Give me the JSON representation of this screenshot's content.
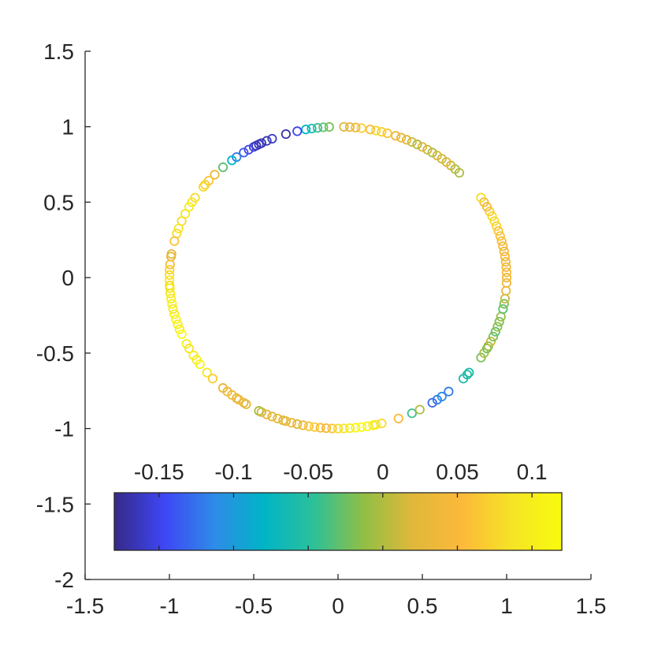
{
  "chart_data": {
    "type": "scatter",
    "marker": "open-circle",
    "colormap": "parula",
    "xlim": [
      -1.5,
      1.5
    ],
    "ylim": [
      -2,
      1.5
    ],
    "x_ticks": [
      "-1.5",
      "-1",
      "-0.5",
      "0",
      "0.5",
      "1",
      "1.5"
    ],
    "y_ticks": [
      "1.5",
      "1",
      "0.5",
      "0",
      "-0.5",
      "-1",
      "-1.5",
      "-2"
    ],
    "grid": false,
    "colorbar": {
      "location": "inside-bottom",
      "orientation": "horizontal",
      "range": [
        -0.18,
        0.12
      ],
      "ticks": [
        "-0.15",
        "-0.1",
        "-0.05",
        "0",
        "0.05",
        "0.1"
      ],
      "colors": [
        "#352a87",
        "#3e46f4",
        "#2f8ae8",
        "#00b4c6",
        "#2cc09a",
        "#8fbf45",
        "#e0b83a",
        "#fcb93a",
        "#f5e425",
        "#f9fb0e"
      ]
    },
    "points": [
      {
        "angle": 93,
        "c": -0.02
      },
      {
        "angle": 95,
        "c": -0.03
      },
      {
        "angle": 97,
        "c": -0.04
      },
      {
        "angle": 99,
        "c": -0.06
      },
      {
        "angle": 101,
        "c": -0.08
      },
      {
        "angle": 104,
        "c": -0.15
      },
      {
        "angle": 108,
        "c": -0.17
      },
      {
        "angle": 113,
        "c": -0.16
      },
      {
        "angle": 115,
        "c": -0.165
      },
      {
        "angle": 117,
        "c": -0.17
      },
      {
        "angle": 118,
        "c": -0.16
      },
      {
        "angle": 119,
        "c": -0.17
      },
      {
        "angle": 120,
        "c": -0.16
      },
      {
        "angle": 122,
        "c": -0.15
      },
      {
        "angle": 124,
        "c": -0.14
      },
      {
        "angle": 127,
        "c": -0.12
      },
      {
        "angle": 129,
        "c": -0.08
      },
      {
        "angle": 133,
        "c": -0.03
      },
      {
        "angle": 137,
        "c": 0.03
      },
      {
        "angle": 140,
        "c": 0.06
      },
      {
        "angle": 142,
        "c": 0.07
      },
      {
        "angle": 143,
        "c": 0.08
      },
      {
        "angle": 148,
        "c": 0.08
      },
      {
        "angle": 150,
        "c": 0.09
      },
      {
        "angle": 152,
        "c": 0.1
      },
      {
        "angle": 155,
        "c": 0.09
      },
      {
        "angle": 158,
        "c": 0.08
      },
      {
        "angle": 161,
        "c": 0.09
      },
      {
        "angle": 163,
        "c": 0.08
      },
      {
        "angle": 166,
        "c": 0.06
      },
      {
        "angle": 171,
        "c": 0.02
      },
      {
        "angle": 172,
        "c": 0.03
      },
      {
        "angle": 175,
        "c": 0.05
      },
      {
        "angle": 177,
        "c": 0.07
      },
      {
        "angle": 179,
        "c": 0.08
      },
      {
        "angle": 181,
        "c": 0.09
      },
      {
        "angle": 183,
        "c": 0.08
      },
      {
        "angle": 184,
        "c": 0.1
      },
      {
        "angle": 186,
        "c": 0.09
      },
      {
        "angle": 188,
        "c": 0.1
      },
      {
        "angle": 190,
        "c": 0.11
      },
      {
        "angle": 192,
        "c": 0.09
      },
      {
        "angle": 194,
        "c": 0.1
      },
      {
        "angle": 196,
        "c": 0.11
      },
      {
        "angle": 198,
        "c": 0.1
      },
      {
        "angle": 200,
        "c": 0.1
      },
      {
        "angle": 202,
        "c": 0.12
      },
      {
        "angle": 206,
        "c": 0.1
      },
      {
        "angle": 208,
        "c": 0.09
      },
      {
        "angle": 211,
        "c": 0.1
      },
      {
        "angle": 213,
        "c": 0.1
      },
      {
        "angle": 215,
        "c": 0.11
      },
      {
        "angle": 219,
        "c": 0.09
      },
      {
        "angle": 222,
        "c": 0.07
      },
      {
        "angle": 227,
        "c": 0.03
      },
      {
        "angle": 229,
        "c": 0.035
      },
      {
        "angle": 231,
        "c": 0.04
      },
      {
        "angle": 233,
        "c": 0.03
      },
      {
        "angle": 234,
        "c": 0.04
      },
      {
        "angle": 236,
        "c": 0.03
      },
      {
        "angle": 237,
        "c": 0.02
      },
      {
        "angle": 242,
        "c": 0.0
      },
      {
        "angle": 243,
        "c": 0.01
      },
      {
        "angle": 245,
        "c": 0.03
      },
      {
        "angle": 247,
        "c": 0.02
      },
      {
        "angle": 249,
        "c": 0.03
      },
      {
        "angle": 251,
        "c": 0.02
      },
      {
        "angle": 252,
        "c": 0.03
      },
      {
        "angle": 254,
        "c": 0.04
      },
      {
        "angle": 256,
        "c": 0.02
      },
      {
        "angle": 258,
        "c": 0.03
      },
      {
        "angle": 260,
        "c": 0.06
      },
      {
        "angle": 262,
        "c": 0.07
      },
      {
        "angle": 264,
        "c": 0.05
      },
      {
        "angle": 266,
        "c": 0.04
      },
      {
        "angle": 268,
        "c": 0.06
      },
      {
        "angle": 270,
        "c": 0.08
      },
      {
        "angle": 272,
        "c": 0.09
      },
      {
        "angle": 274,
        "c": 0.1
      },
      {
        "angle": 276,
        "c": 0.11
      },
      {
        "angle": 278,
        "c": 0.12
      },
      {
        "angle": 280,
        "c": 0.11
      },
      {
        "angle": 282,
        "c": 0.1
      },
      {
        "angle": 283,
        "c": 0.09
      },
      {
        "angle": 285,
        "c": 0.08
      },
      {
        "angle": 291,
        "c": 0.05
      },
      {
        "angle": 296,
        "c": -0.04
      },
      {
        "angle": 299,
        "c": 0.0
      },
      {
        "angle": 304,
        "c": -0.13
      },
      {
        "angle": 306,
        "c": -0.12
      },
      {
        "angle": 308,
        "c": -0.11
      },
      {
        "angle": 311,
        "c": -0.12
      },
      {
        "angle": 318,
        "c": -0.06
      },
      {
        "angle": 320,
        "c": -0.05
      },
      {
        "angle": 321,
        "c": -0.06
      },
      {
        "angle": 328,
        "c": -0.02
      },
      {
        "angle": 330,
        "c": 0.0
      },
      {
        "angle": 332,
        "c": -0.02
      },
      {
        "angle": 333,
        "c": -0.01
      },
      {
        "angle": 335,
        "c": 0.01
      },
      {
        "angle": 337,
        "c": -0.02
      },
      {
        "angle": 339,
        "c": -0.03
      },
      {
        "angle": 341,
        "c": -0.01
      },
      {
        "angle": 343,
        "c": -0.02
      },
      {
        "angle": 345,
        "c": -0.01
      },
      {
        "angle": 348,
        "c": -0.03
      },
      {
        "angle": 350,
        "c": -0.02
      },
      {
        "angle": 352,
        "c": 0.01
      },
      {
        "angle": 355,
        "c": 0.03
      },
      {
        "angle": 358,
        "c": 0.04
      },
      {
        "angle": 0,
        "c": 0.04
      },
      {
        "angle": 2,
        "c": 0.05
      },
      {
        "angle": 4,
        "c": 0.04
      },
      {
        "angle": 6,
        "c": 0.05
      },
      {
        "angle": 8,
        "c": 0.04
      },
      {
        "angle": 10,
        "c": 0.05
      },
      {
        "angle": 12,
        "c": 0.04
      },
      {
        "angle": 14,
        "c": 0.05
      },
      {
        "angle": 16,
        "c": 0.06
      },
      {
        "angle": 18,
        "c": 0.06
      },
      {
        "angle": 20,
        "c": 0.07
      },
      {
        "angle": 22,
        "c": 0.08
      },
      {
        "angle": 24,
        "c": 0.08
      },
      {
        "angle": 26,
        "c": 0.07
      },
      {
        "angle": 28,
        "c": 0.05
      },
      {
        "angle": 30,
        "c": 0.04
      },
      {
        "angle": 32,
        "c": 0.08
      },
      {
        "angle": 44,
        "c": 0.0
      },
      {
        "angle": 46,
        "c": 0.0
      },
      {
        "angle": 48,
        "c": 0.01
      },
      {
        "angle": 50,
        "c": 0.02
      },
      {
        "angle": 52,
        "c": 0.01
      },
      {
        "angle": 54,
        "c": 0.02
      },
      {
        "angle": 56,
        "c": 0.0
      },
      {
        "angle": 58,
        "c": 0.01
      },
      {
        "angle": 60,
        "c": 0.02
      },
      {
        "angle": 62,
        "c": 0.0
      },
      {
        "angle": 64,
        "c": 0.01
      },
      {
        "angle": 66,
        "c": 0.02
      },
      {
        "angle": 68,
        "c": 0.03
      },
      {
        "angle": 70,
        "c": 0.04
      },
      {
        "angle": 73,
        "c": 0.06
      },
      {
        "angle": 75,
        "c": 0.07
      },
      {
        "angle": 77,
        "c": 0.08
      },
      {
        "angle": 79,
        "c": 0.05
      },
      {
        "angle": 82,
        "c": 0.07
      },
      {
        "angle": 84,
        "c": 0.04
      },
      {
        "angle": 86,
        "c": 0.03
      },
      {
        "angle": 88,
        "c": 0.02
      }
    ]
  }
}
